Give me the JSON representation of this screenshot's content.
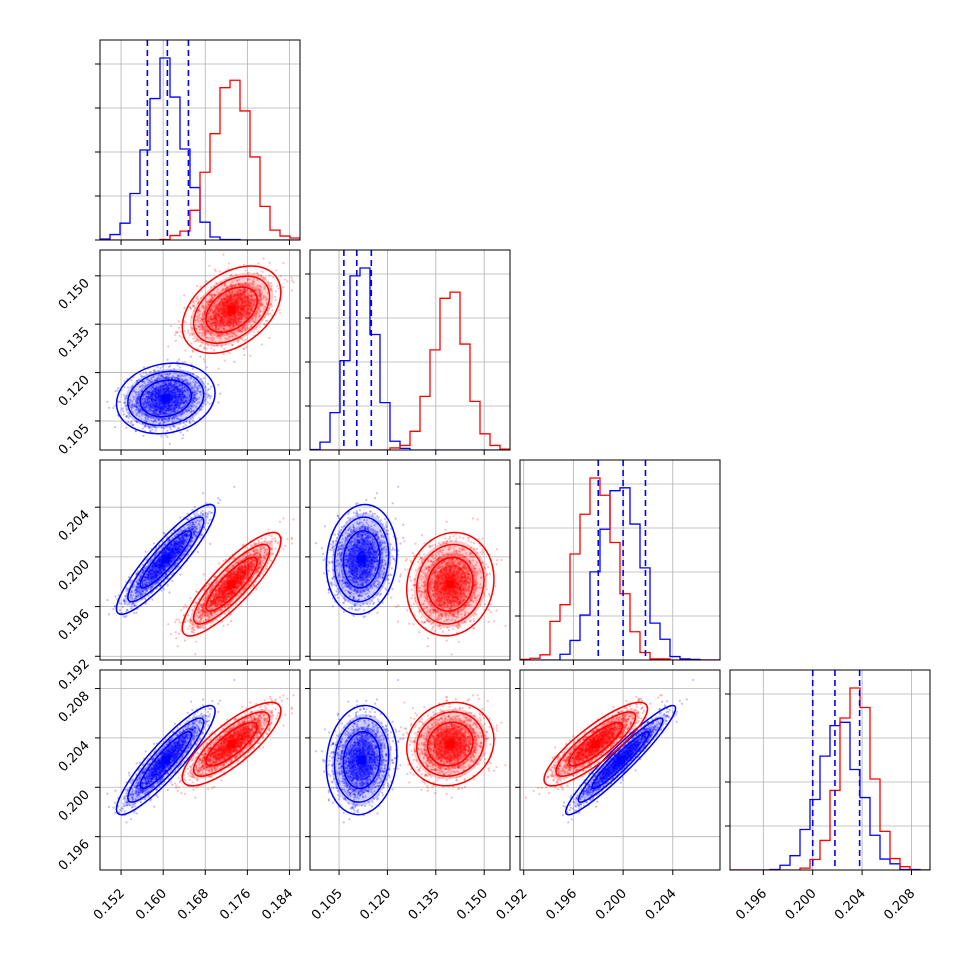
{
  "chart_data": {
    "type": "corner",
    "grid": true,
    "colors": {
      "series_a": "#0000ff",
      "series_b": "#ff0000"
    },
    "parameters": [
      {
        "ticks": [
          "0.152",
          "0.160",
          "0.168",
          "0.176",
          "0.184"
        ],
        "range": [
          0.148,
          0.186
        ]
      },
      {
        "ticks": [
          "0.105",
          "0.120",
          "0.135",
          "0.150"
        ],
        "range": [
          0.096,
          0.158
        ]
      },
      {
        "ticks": [
          "0.192",
          "0.196",
          "0.200",
          "0.204"
        ],
        "range": [
          0.1917,
          0.2078
        ]
      },
      {
        "ticks": [
          "0.196",
          "0.200",
          "0.204",
          "0.208"
        ],
        "range": [
          0.1933,
          0.2095
        ]
      }
    ],
    "series": [
      {
        "color": "#0000ff",
        "mean": [
          0.1605,
          0.112,
          0.1998,
          0.2022
        ],
        "sd": [
          0.0036,
          0.0042,
          0.0017,
          0.0017
        ],
        "quantiles": [
          [
            0.157,
            0.1608,
            0.1648
          ],
          [
            0.1065,
            0.1105,
            0.115
          ],
          [
            0.198,
            0.2,
            0.2018
          ],
          [
            0.2,
            0.2018,
            0.2038
          ]
        ],
        "corr": [
          [
            1,
            0.15,
            0.9,
            0.9
          ],
          [
            0.15,
            1,
            0.1,
            0.1
          ],
          [
            0.9,
            0.1,
            1,
            0.95
          ],
          [
            0.9,
            0.1,
            0.95,
            1
          ]
        ]
      },
      {
        "color": "#ff0000",
        "mean": [
          0.173,
          0.1395,
          0.1978,
          0.2035
        ],
        "sd": [
          0.0036,
          0.0052,
          0.0016,
          0.0013
        ],
        "quantiles": null,
        "corr": [
          [
            1,
            0.4,
            0.85,
            0.8
          ],
          [
            0.4,
            1,
            0.1,
            0.1
          ],
          [
            0.85,
            0.1,
            1,
            0.85
          ],
          [
            0.8,
            0.1,
            0.85,
            1
          ]
        ]
      }
    ]
  }
}
